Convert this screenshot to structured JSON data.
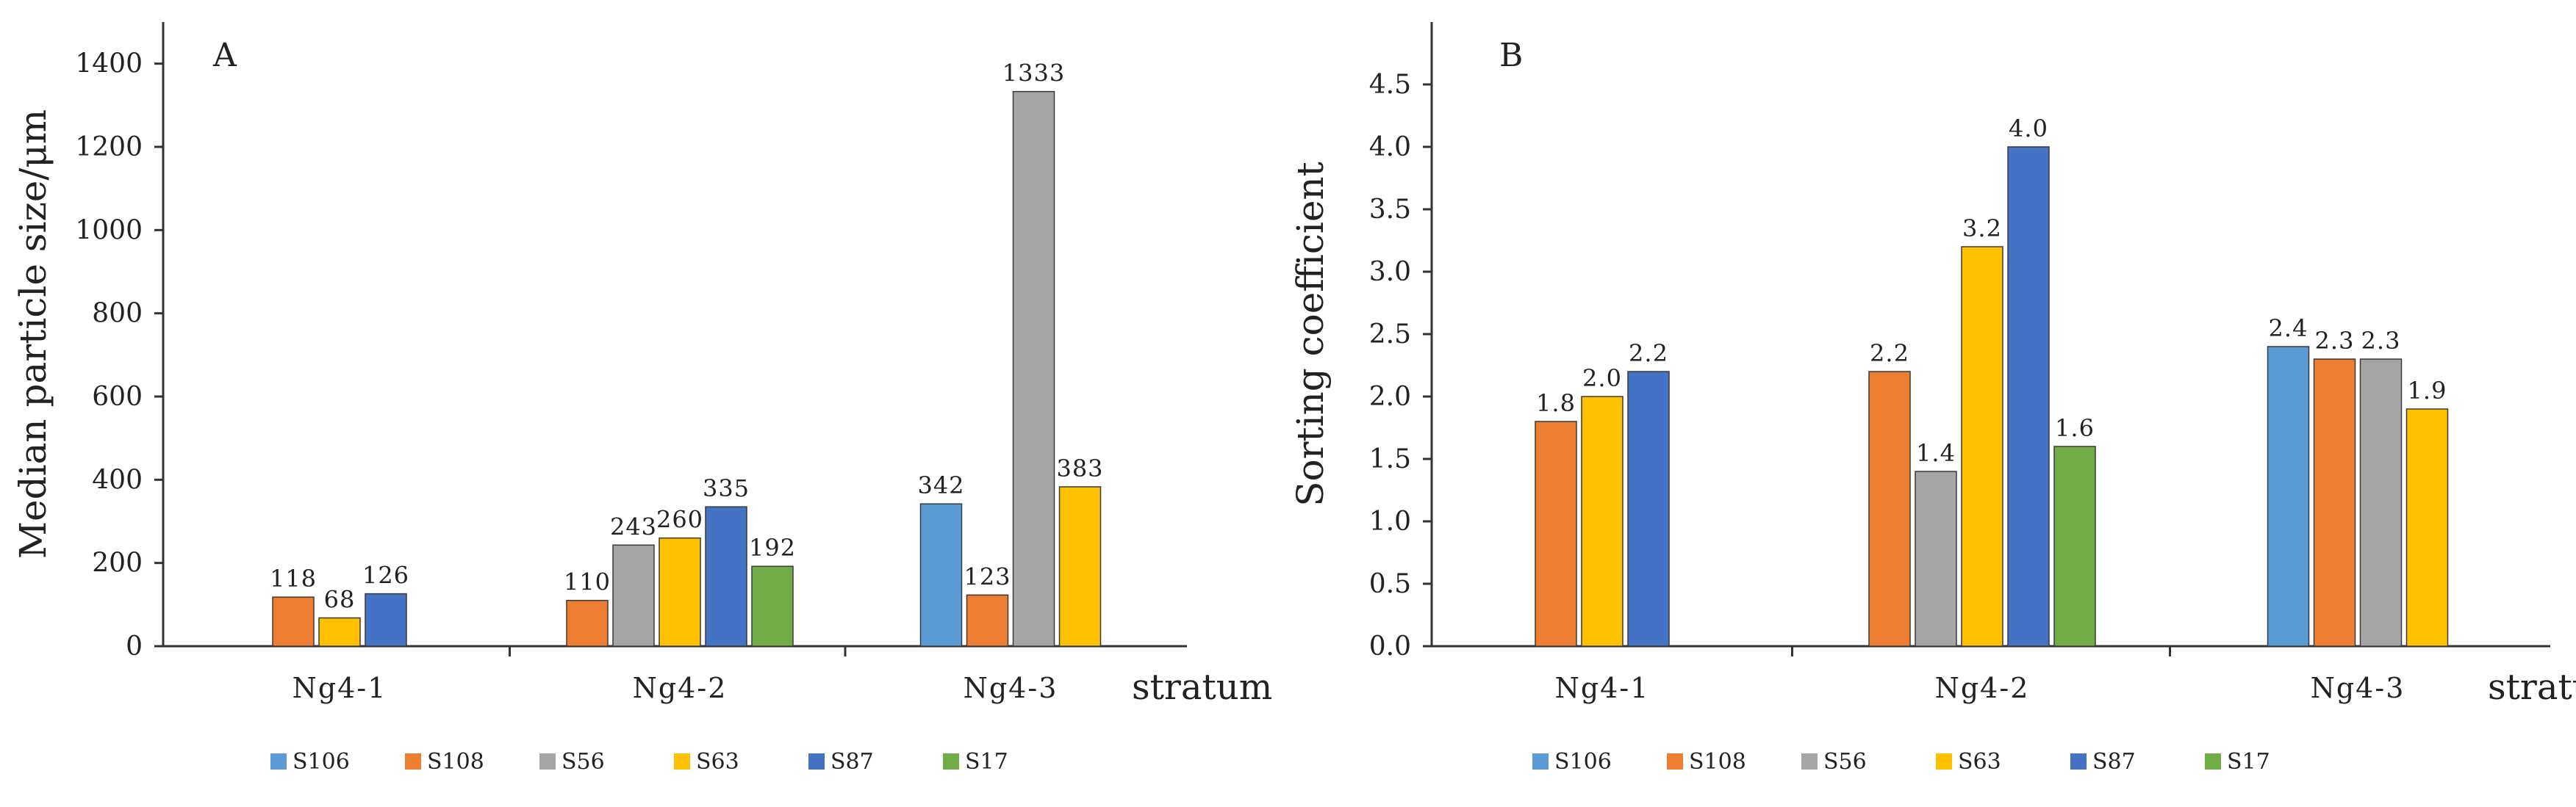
{
  "chart_data": [
    {
      "type": "bar",
      "panel_label": "A",
      "ylabel": "Median particle size/μm",
      "xlabel": "stratum",
      "categories": [
        "Ng4-1",
        "Ng4-2",
        "Ng4-3"
      ],
      "ylim": [
        0,
        1500
      ],
      "yticks": [
        "0",
        "200",
        "400",
        "600",
        "800",
        "1000",
        "1200",
        "1400"
      ],
      "legend": [
        "S106",
        "S108",
        "S56",
        "S63",
        "S87",
        "S17"
      ],
      "series": [
        {
          "name": "S106",
          "color": "#5B9BD5",
          "values": [
            null,
            null,
            342
          ],
          "labels": [
            "",
            "",
            "342"
          ]
        },
        {
          "name": "S108",
          "color": "#ED7D31",
          "values": [
            118,
            110,
            123
          ],
          "labels": [
            "118",
            "110",
            "123"
          ]
        },
        {
          "name": "S56",
          "color": "#A5A5A5",
          "values": [
            null,
            243,
            1333
          ],
          "labels": [
            "",
            "243",
            "1333"
          ]
        },
        {
          "name": "S63",
          "color": "#FFC000",
          "values": [
            68,
            260,
            383
          ],
          "labels": [
            "68",
            "260",
            "383"
          ]
        },
        {
          "name": "S87",
          "color": "#4472C4",
          "values": [
            126,
            335,
            null
          ],
          "labels": [
            "126",
            "335",
            ""
          ]
        },
        {
          "name": "S17",
          "color": "#70AD47",
          "values": [
            null,
            192,
            null
          ],
          "labels": [
            "",
            "192",
            ""
          ]
        }
      ]
    },
    {
      "type": "bar",
      "panel_label": "B",
      "ylabel": "Sorting coefficient",
      "xlabel": "stratum",
      "categories": [
        "Ng4-1",
        "Ng4-2",
        "Ng4-3"
      ],
      "ylim": [
        0,
        5
      ],
      "yticks": [
        "0.0",
        "0.5",
        "1.0",
        "1.5",
        "2.0",
        "2.5",
        "3.0",
        "3.5",
        "4.0",
        "4.5"
      ],
      "legend": [
        "S106",
        "S108",
        "S56",
        "S63",
        "S87",
        "S17"
      ],
      "series": [
        {
          "name": "S106",
          "color": "#5B9BD5",
          "values": [
            null,
            null,
            2.4
          ],
          "labels": [
            "",
            "",
            "2.4"
          ]
        },
        {
          "name": "S108",
          "color": "#ED7D31",
          "values": [
            1.8,
            2.2,
            2.3
          ],
          "labels": [
            "1.8",
            "2.2",
            "2.3"
          ]
        },
        {
          "name": "S56",
          "color": "#A5A5A5",
          "values": [
            null,
            1.4,
            2.3
          ],
          "labels": [
            "",
            "1.4",
            "2.3"
          ]
        },
        {
          "name": "S63",
          "color": "#FFC000",
          "values": [
            2.0,
            3.2,
            1.9
          ],
          "labels": [
            "2.0",
            "3.2",
            "1.9"
          ]
        },
        {
          "name": "S87",
          "color": "#4472C4",
          "values": [
            2.2,
            4.0,
            null
          ],
          "labels": [
            "2.2",
            "4.0",
            ""
          ]
        },
        {
          "name": "S17",
          "color": "#70AD47",
          "values": [
            null,
            1.6,
            null
          ],
          "labels": [
            "",
            "1.6",
            ""
          ]
        }
      ]
    }
  ]
}
